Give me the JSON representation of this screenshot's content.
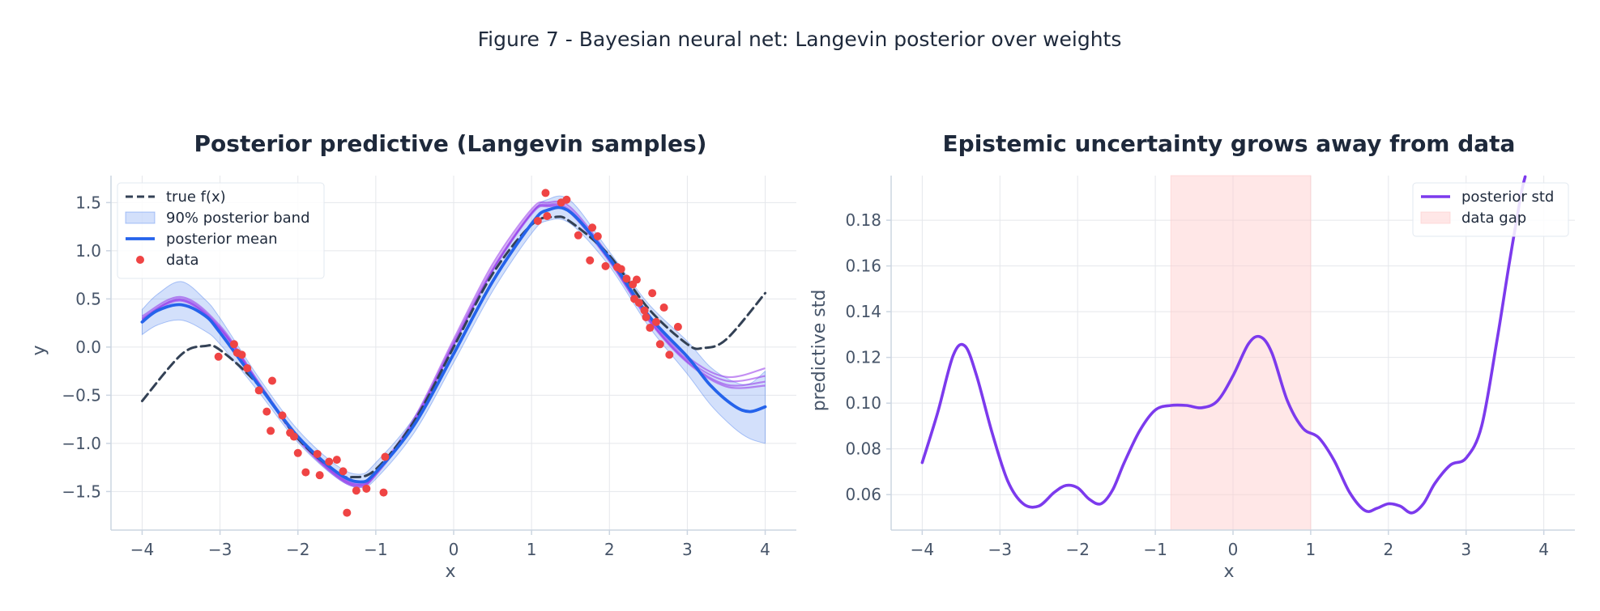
{
  "figure_title": "Figure 7 - Bayesian neural net: Langevin posterior over weights",
  "colors": {
    "true_fx": "#334155",
    "band": "#2563eb",
    "mean": "#2563eb",
    "samples": "#9333ea",
    "data": "#ef4444",
    "std": "#7c3aed",
    "gap": "#fecaca"
  },
  "chart_data": [
    {
      "type": "line",
      "title": "Posterior predictive (Langevin samples)",
      "xlabel": "x",
      "ylabel": "y",
      "xlim": [
        -4.4,
        4.4
      ],
      "ylim": [
        -1.9,
        1.78
      ],
      "xticks": [
        -4,
        -3,
        -2,
        -1,
        0,
        1,
        2,
        3,
        4
      ],
      "xtick_labels": [
        "−4",
        "−3",
        "−2",
        "−1",
        "0",
        "1",
        "2",
        "3",
        "4"
      ],
      "yticks": [
        -1.5,
        -1.0,
        -0.5,
        0.0,
        0.5,
        1.0,
        1.5
      ],
      "ytick_labels": [
        "−1.5",
        "−1.0",
        "−0.5",
        "0.0",
        "0.5",
        "1.0",
        "1.5"
      ],
      "grid": true,
      "legend_position": "top-left",
      "legend": [
        "true f(x)",
        "90% posterior band",
        "posterior mean",
        "data"
      ],
      "series": [
        {
          "name": "true f(x)",
          "x": [
            -4,
            -3.5,
            -3.2,
            -3,
            -2.5,
            -2,
            -1.5,
            -1.3,
            -1,
            -0.5,
            0,
            0.5,
            1,
            1.3,
            1.5,
            2,
            2.5,
            3,
            3.2,
            3.5,
            4
          ],
          "y": [
            -0.56,
            -0.08,
            0.01,
            -0.03,
            -0.4,
            -0.95,
            -1.3,
            -1.35,
            -1.27,
            -0.76,
            0.0,
            0.76,
            1.27,
            1.35,
            1.3,
            0.95,
            0.4,
            0.03,
            -0.01,
            0.08,
            0.56
          ]
        },
        {
          "name": "posterior mean",
          "x": [
            -4,
            -3.8,
            -3.5,
            -3.2,
            -3,
            -2.5,
            -2,
            -1.5,
            -1.2,
            -1,
            -0.5,
            0,
            0.5,
            1,
            1.2,
            1.5,
            2,
            2.5,
            3,
            3.3,
            3.6,
            3.8,
            4
          ],
          "y": [
            0.26,
            0.38,
            0.44,
            0.33,
            0.15,
            -0.4,
            -0.93,
            -1.3,
            -1.4,
            -1.3,
            -0.8,
            -0.07,
            0.68,
            1.28,
            1.42,
            1.4,
            0.92,
            0.33,
            -0.1,
            -0.4,
            -0.61,
            -0.67,
            -0.62
          ]
        },
        {
          "name": "90% posterior band",
          "x": [
            -4,
            -3.8,
            -3.5,
            -3.2,
            -3,
            -2.5,
            -2,
            -1.5,
            -1.2,
            -1,
            -0.5,
            0,
            0.5,
            1,
            1.2,
            1.5,
            2,
            2.5,
            3,
            3.3,
            3.6,
            3.8,
            4
          ],
          "lower": [
            0.13,
            0.23,
            0.28,
            0.17,
            0.03,
            -0.47,
            -0.99,
            -1.36,
            -1.46,
            -1.37,
            -0.88,
            -0.16,
            0.58,
            1.18,
            1.31,
            1.28,
            0.84,
            0.22,
            -0.28,
            -0.6,
            -0.84,
            -0.95,
            -1.0
          ],
          "upper": [
            0.39,
            0.55,
            0.68,
            0.5,
            0.3,
            -0.32,
            -0.86,
            -1.23,
            -1.32,
            -1.2,
            -0.72,
            0.03,
            0.8,
            1.39,
            1.53,
            1.52,
            0.99,
            0.45,
            0.06,
            -0.21,
            -0.36,
            -0.38,
            -0.25
          ]
        }
      ],
      "samples": [
        {
          "x": [
            -4,
            -3.5,
            -3,
            -2.5,
            -2,
            -1.5,
            -1.2,
            -1,
            -0.5,
            0,
            0.5,
            1,
            1.2,
            1.5,
            2,
            2.5,
            3,
            3.5,
            4
          ],
          "y": [
            0.29,
            0.5,
            0.2,
            -0.38,
            -0.94,
            -1.33,
            -1.43,
            -1.31,
            -0.75,
            0.05,
            0.82,
            1.4,
            1.48,
            1.42,
            0.92,
            0.3,
            -0.13,
            -0.35,
            -0.3
          ]
        },
        {
          "x": [
            -4,
            -3.5,
            -3,
            -2.5,
            -2,
            -1.5,
            -1.2,
            -1,
            -0.5,
            0,
            0.5,
            1,
            1.2,
            1.5,
            2,
            2.5,
            3,
            3.5,
            4
          ],
          "y": [
            0.32,
            0.52,
            0.22,
            -0.37,
            -0.93,
            -1.32,
            -1.42,
            -1.3,
            -0.73,
            0.08,
            0.86,
            1.43,
            1.5,
            1.45,
            0.94,
            0.32,
            -0.1,
            -0.31,
            -0.22
          ]
        },
        {
          "x": [
            -4,
            -3.5,
            -3,
            -2.5,
            -2,
            -1.5,
            -1.2,
            -1,
            -0.5,
            0,
            0.5,
            1,
            1.2,
            1.5,
            2,
            2.5,
            3,
            3.5,
            4
          ],
          "y": [
            0.3,
            0.49,
            0.19,
            -0.39,
            -0.95,
            -1.34,
            -1.44,
            -1.32,
            -0.77,
            0.03,
            0.8,
            1.39,
            1.47,
            1.4,
            0.9,
            0.29,
            -0.15,
            -0.39,
            -0.36
          ]
        },
        {
          "x": [
            -4,
            -3.5,
            -3,
            -2.5,
            -2,
            -1.5,
            -1.2,
            -1,
            -0.5,
            0,
            0.5,
            1,
            1.2,
            1.5,
            2,
            2.5,
            3,
            3.5,
            4
          ],
          "y": [
            0.28,
            0.48,
            0.18,
            -0.4,
            -0.96,
            -1.35,
            -1.45,
            -1.33,
            -0.78,
            0.02,
            0.79,
            1.38,
            1.46,
            1.39,
            0.89,
            0.28,
            -0.16,
            -0.41,
            -0.4
          ]
        }
      ],
      "points": [
        [
          -3.02,
          -0.1
        ],
        [
          -2.82,
          0.03
        ],
        [
          -2.78,
          -0.06
        ],
        [
          -2.72,
          -0.08
        ],
        [
          -2.65,
          -0.22
        ],
        [
          -2.5,
          -0.45
        ],
        [
          -2.4,
          -0.67
        ],
        [
          -2.35,
          -0.87
        ],
        [
          -2.33,
          -0.35
        ],
        [
          -2.2,
          -0.71
        ],
        [
          -2.1,
          -0.89
        ],
        [
          -2.05,
          -0.93
        ],
        [
          -2.0,
          -1.1
        ],
        [
          -1.9,
          -1.3
        ],
        [
          -1.75,
          -1.11
        ],
        [
          -1.72,
          -1.33
        ],
        [
          -1.6,
          -1.19
        ],
        [
          -1.5,
          -1.17
        ],
        [
          -1.42,
          -1.29
        ],
        [
          -1.37,
          -1.72
        ],
        [
          -1.25,
          -1.49
        ],
        [
          -1.12,
          -1.47
        ],
        [
          -0.9,
          -1.51
        ],
        [
          -0.88,
          -1.14
        ],
        [
          1.08,
          1.31
        ],
        [
          1.18,
          1.6
        ],
        [
          1.2,
          1.36
        ],
        [
          1.38,
          1.5
        ],
        [
          1.45,
          1.53
        ],
        [
          1.6,
          1.16
        ],
        [
          1.75,
          0.9
        ],
        [
          1.78,
          1.24
        ],
        [
          1.85,
          1.15
        ],
        [
          1.95,
          0.84
        ],
        [
          2.1,
          0.83
        ],
        [
          2.15,
          0.81
        ],
        [
          2.22,
          0.71
        ],
        [
          2.3,
          0.65
        ],
        [
          2.32,
          0.5
        ],
        [
          2.35,
          0.7
        ],
        [
          2.38,
          0.46
        ],
        [
          2.45,
          0.38
        ],
        [
          2.47,
          0.31
        ],
        [
          2.52,
          0.2
        ],
        [
          2.55,
          0.56
        ],
        [
          2.6,
          0.26
        ],
        [
          2.65,
          0.03
        ],
        [
          2.7,
          0.41
        ],
        [
          2.77,
          -0.08
        ],
        [
          2.88,
          0.21
        ]
      ]
    },
    {
      "type": "line",
      "title": "Epistemic uncertainty grows away from data",
      "xlabel": "x",
      "ylabel": "predictive std",
      "xlim": [
        -4.4,
        4.4
      ],
      "ylim": [
        0.0445,
        0.1995
      ],
      "xticks": [
        -4,
        -3,
        -2,
        -1,
        0,
        1,
        2,
        3,
        4
      ],
      "xtick_labels": [
        "−4",
        "−3",
        "−2",
        "−1",
        "0",
        "1",
        "2",
        "3",
        "4"
      ],
      "yticks": [
        0.06,
        0.08,
        0.1,
        0.12,
        0.14,
        0.16,
        0.18
      ],
      "ytick_labels": [
        "0.06",
        "0.08",
        "0.10",
        "0.12",
        "0.14",
        "0.16",
        "0.18"
      ],
      "grid": true,
      "legend_position": "top-right",
      "legend": [
        "posterior std",
        "data gap"
      ],
      "gap_region": [
        -0.8,
        1.0
      ],
      "series": [
        {
          "name": "posterior std",
          "x": [
            -4,
            -3.8,
            -3.6,
            -3.45,
            -3.3,
            -3.1,
            -2.9,
            -2.7,
            -2.5,
            -2.3,
            -2.15,
            -2.0,
            -1.85,
            -1.7,
            -1.55,
            -1.4,
            -1.2,
            -1.0,
            -0.8,
            -0.6,
            -0.4,
            -0.2,
            0.0,
            0.2,
            0.35,
            0.5,
            0.7,
            0.9,
            1.1,
            1.3,
            1.5,
            1.7,
            1.85,
            2.0,
            2.15,
            2.3,
            2.45,
            2.6,
            2.8,
            3.0,
            3.2,
            3.4,
            3.55,
            3.7,
            3.76
          ],
          "y": [
            0.074,
            0.096,
            0.121,
            0.125,
            0.112,
            0.087,
            0.066,
            0.056,
            0.055,
            0.061,
            0.064,
            0.063,
            0.058,
            0.056,
            0.062,
            0.074,
            0.088,
            0.097,
            0.099,
            0.099,
            0.098,
            0.101,
            0.112,
            0.126,
            0.129,
            0.122,
            0.101,
            0.089,
            0.085,
            0.075,
            0.061,
            0.053,
            0.054,
            0.056,
            0.055,
            0.052,
            0.056,
            0.065,
            0.073,
            0.076,
            0.09,
            0.128,
            0.16,
            0.19,
            0.199
          ]
        }
      ]
    }
  ]
}
